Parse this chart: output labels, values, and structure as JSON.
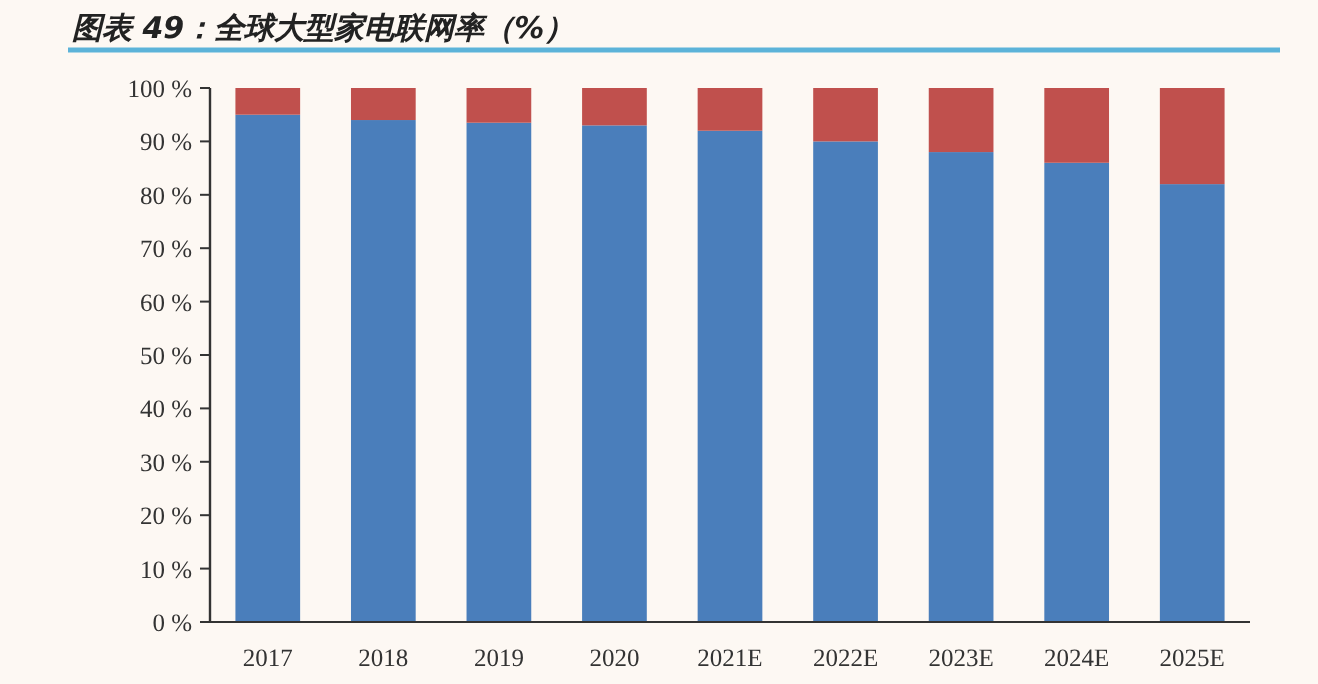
{
  "chart_data": {
    "type": "bar",
    "title": "图表 49：全球大型家电联网率（%）",
    "stacked": true,
    "categories": [
      "2017",
      "2018",
      "2019",
      "2020",
      "2021E",
      "2022E",
      "2023E",
      "2024E",
      "2025E"
    ],
    "series": [
      {
        "color": "#4a7ebb",
        "values": [
          95,
          94,
          93.5,
          93,
          92,
          90,
          88,
          86,
          82
        ]
      },
      {
        "color": "#c0504d",
        "values": [
          5,
          6,
          6.5,
          7,
          8,
          10,
          12,
          14,
          18
        ]
      }
    ],
    "ylim": [
      0,
      100
    ],
    "yticks": [
      {
        "value": 0,
        "label": "0 %"
      },
      {
        "value": 10,
        "label": "10 %"
      },
      {
        "value": 20,
        "label": "20 %"
      },
      {
        "value": 30,
        "label": "30 %"
      },
      {
        "value": 40,
        "label": "40 %"
      },
      {
        "value": 50,
        "label": "50 %"
      },
      {
        "value": 60,
        "label": "60 %"
      },
      {
        "value": 70,
        "label": "70 %"
      },
      {
        "value": 80,
        "label": "80 %"
      },
      {
        "value": 90,
        "label": "90 %"
      },
      {
        "value": 100,
        "label": "100 %"
      }
    ],
    "grid": false
  }
}
